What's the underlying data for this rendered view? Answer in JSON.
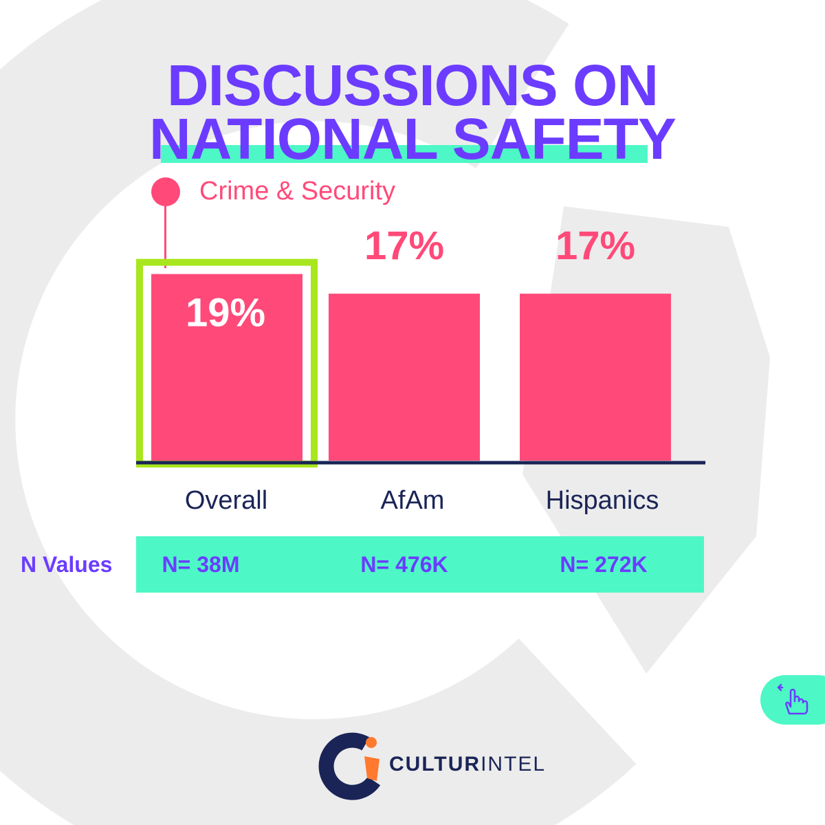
{
  "title": {
    "line1": "DISCUSSIONS ON",
    "line2": "NATIONAL SAFETY"
  },
  "legend": {
    "label": "Crime & Security",
    "color": "#ff4a79"
  },
  "chart_data": {
    "type": "bar",
    "title": "DISCUSSIONS ON NATIONAL SAFETY",
    "categories": [
      "Overall",
      "AfAm",
      "Hispanics"
    ],
    "series": [
      {
        "name": "Crime & Security",
        "values": [
          19,
          17,
          17
        ]
      }
    ],
    "value_labels": [
      "19%",
      "17%",
      "17%"
    ],
    "highlighted_category": "Overall",
    "unit": "%",
    "ylim": [
      0,
      21
    ],
    "xlabel": "",
    "ylabel": ""
  },
  "n_values": {
    "label": "N Values",
    "items": [
      "N= 38M",
      "N= 476K",
      "N= 272K"
    ]
  },
  "brand": {
    "name_bold": "CULTUR",
    "name_light": "INTEL"
  },
  "colors": {
    "bar": "#ff4a79",
    "highlight": "#a8e61d",
    "accent": "#4ef7c6",
    "title": "#6b3cff",
    "axis": "#1a2456"
  },
  "icons": {
    "swipe": "swipe-hand-icon"
  }
}
